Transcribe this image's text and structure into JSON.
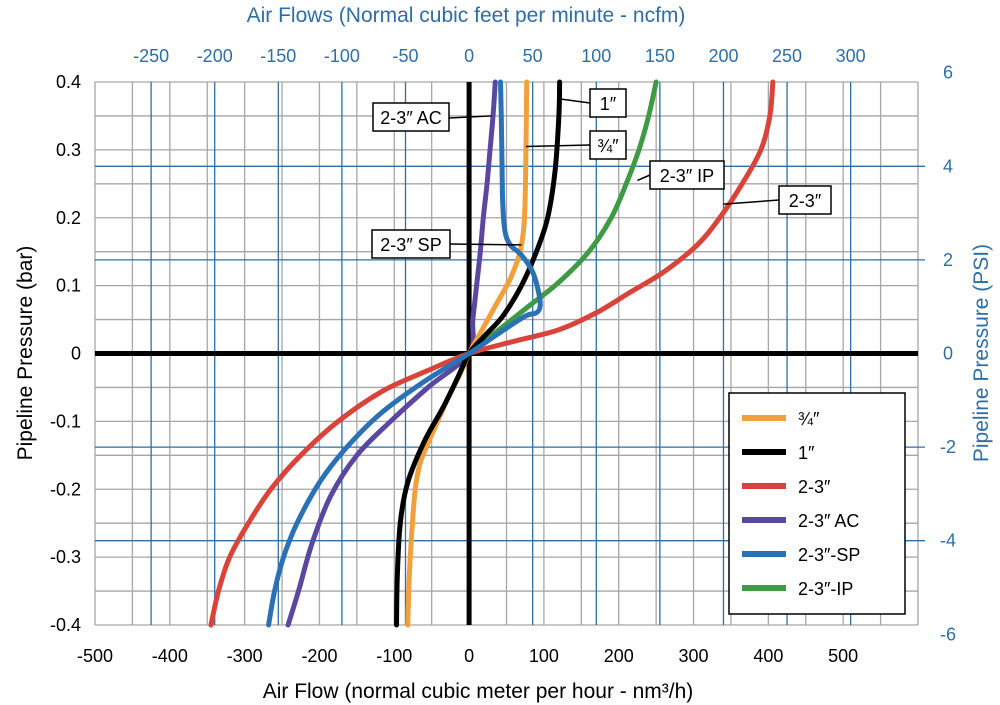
{
  "chart_data": {
    "type": "line",
    "title_top_axis": "Air Flows (Normal cubic feet per minute - ncfm)",
    "xlabel": "Air Flow (normal cubic meter per hour - nm³/h)",
    "ylabel_left": "Pipeline Pressure (bar)",
    "ylabel_right": "Pipeline Pressure (PSI)",
    "xlim": [
      -500,
      600
    ],
    "ylim": [
      -0.4,
      0.4
    ],
    "x_ticks": [
      "-500",
      "-400",
      "-300",
      "-200",
      "-100",
      "0",
      "100",
      "200",
      "300",
      "400",
      "500"
    ],
    "x_tick_values": [
      -500,
      -400,
      -300,
      -200,
      -100,
      0,
      100,
      200,
      300,
      400,
      500
    ],
    "y_ticks": [
      "-0.4",
      "-0.3",
      "-0.2",
      "-0.1",
      "0",
      "0.1",
      "0.2",
      "0.3",
      "0.4"
    ],
    "y_tick_values": [
      -0.4,
      -0.3,
      -0.2,
      -0.1,
      0,
      0.1,
      0.2,
      0.3,
      0.4
    ],
    "top_ticks": [
      "-250",
      "-200",
      "-150",
      "-100",
      "-50",
      "0",
      "50",
      "100",
      "150",
      "200",
      "250",
      "300"
    ],
    "top_tick_values": [
      -250,
      -200,
      -150,
      -100,
      -50,
      0,
      50,
      100,
      150,
      200,
      250,
      300
    ],
    "right_ticks": [
      "6",
      "4",
      "2",
      "0",
      "-2",
      "-4",
      "-6"
    ],
    "right_tick_values": [
      6,
      4,
      2,
      0,
      -2,
      -4,
      -6
    ],
    "grid": true,
    "legend_position": "bottom-right",
    "colors": {
      "grid": "#a6a6a6",
      "secondary_grid": "#2f6ea5",
      "secondary_text": "#2f6ea5",
      "axis": "#000000"
    },
    "series": [
      {
        "name": "¾″",
        "color": "#f0a03c",
        "points": [
          [
            -82,
            -0.4
          ],
          [
            -80,
            -0.33
          ],
          [
            -77,
            -0.27
          ],
          [
            -72,
            -0.2
          ],
          [
            -65,
            -0.16
          ],
          [
            -50,
            -0.12
          ],
          [
            -30,
            -0.07
          ],
          [
            -12,
            -0.03
          ],
          [
            0,
            0
          ],
          [
            15,
            0.03
          ],
          [
            35,
            0.07
          ],
          [
            55,
            0.11
          ],
          [
            68,
            0.15
          ],
          [
            74,
            0.2
          ],
          [
            76,
            0.3
          ],
          [
            77,
            0.4
          ]
        ]
      },
      {
        "name": "1″",
        "color": "#000000",
        "points": [
          [
            -97,
            -0.4
          ],
          [
            -96,
            -0.33
          ],
          [
            -92,
            -0.25
          ],
          [
            -82,
            -0.19
          ],
          [
            -60,
            -0.13
          ],
          [
            -35,
            -0.08
          ],
          [
            -15,
            -0.035
          ],
          [
            0,
            0
          ],
          [
            20,
            0.025
          ],
          [
            45,
            0.055
          ],
          [
            70,
            0.1
          ],
          [
            90,
            0.15
          ],
          [
            105,
            0.2
          ],
          [
            115,
            0.27
          ],
          [
            120,
            0.35
          ],
          [
            121,
            0.4
          ]
        ]
      },
      {
        "name": "2-3″",
        "color": "#d9443a",
        "points": [
          [
            -345,
            -0.4
          ],
          [
            -335,
            -0.35
          ],
          [
            -320,
            -0.3
          ],
          [
            -295,
            -0.25
          ],
          [
            -265,
            -0.2
          ],
          [
            -225,
            -0.15
          ],
          [
            -175,
            -0.1
          ],
          [
            -115,
            -0.055
          ],
          [
            -55,
            -0.025
          ],
          [
            0,
            0
          ],
          [
            60,
            0.018
          ],
          [
            120,
            0.035
          ],
          [
            170,
            0.06
          ],
          [
            215,
            0.09
          ],
          [
            260,
            0.12
          ],
          [
            305,
            0.16
          ],
          [
            335,
            0.2
          ],
          [
            365,
            0.25
          ],
          [
            390,
            0.3
          ],
          [
            402,
            0.35
          ],
          [
            406,
            0.4
          ]
        ]
      },
      {
        "name": "2-3″ AC",
        "color": "#5a48a0",
        "points": [
          [
            -242,
            -0.4
          ],
          [
            -228,
            -0.35
          ],
          [
            -210,
            -0.28
          ],
          [
            -185,
            -0.21
          ],
          [
            -150,
            -0.15
          ],
          [
            -105,
            -0.1
          ],
          [
            -55,
            -0.05
          ],
          [
            0,
            0
          ],
          [
            5,
            0.05
          ],
          [
            10,
            0.1
          ],
          [
            15,
            0.15
          ],
          [
            19,
            0.2
          ],
          [
            24,
            0.25
          ],
          [
            28,
            0.3
          ],
          [
            32,
            0.35
          ],
          [
            35,
            0.4
          ]
        ]
      },
      {
        "name": "2-3″-SP",
        "color": "#2a72b5",
        "points": [
          [
            -268,
            -0.4
          ],
          [
            -260,
            -0.35
          ],
          [
            -248,
            -0.3
          ],
          [
            -230,
            -0.25
          ],
          [
            -200,
            -0.19
          ],
          [
            -165,
            -0.14
          ],
          [
            -120,
            -0.09
          ],
          [
            -65,
            -0.045
          ],
          [
            0,
            0
          ],
          [
            40,
            0.03
          ],
          [
            75,
            0.055
          ],
          [
            90,
            0.06
          ],
          [
            95,
            0.07
          ],
          [
            93,
            0.09
          ],
          [
            85,
            0.12
          ],
          [
            70,
            0.145
          ],
          [
            55,
            0.16
          ],
          [
            48,
            0.18
          ],
          [
            45,
            0.22
          ],
          [
            44,
            0.28
          ],
          [
            43,
            0.35
          ],
          [
            42,
            0.4
          ]
        ]
      },
      {
        "name": "2-3″-IP",
        "color": "#3f9a45",
        "points": [
          [
            0,
            0
          ],
          [
            40,
            0.035
          ],
          [
            80,
            0.07
          ],
          [
            120,
            0.105
          ],
          [
            160,
            0.15
          ],
          [
            190,
            0.2
          ],
          [
            210,
            0.25
          ],
          [
            227,
            0.3
          ],
          [
            240,
            0.35
          ],
          [
            250,
            0.4
          ]
        ]
      }
    ],
    "annotations": [
      {
        "text": "2-3″ AC"
      },
      {
        "text": "1″"
      },
      {
        "text": "¾″"
      },
      {
        "text": "2-3″ IP"
      },
      {
        "text": "2-3″"
      },
      {
        "text": "2-3″ SP"
      }
    ]
  }
}
